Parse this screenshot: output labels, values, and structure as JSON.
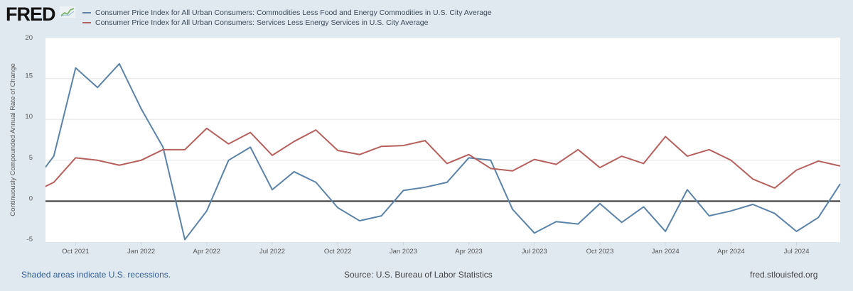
{
  "logo": "FRED",
  "footer": {
    "recessions": "Shaded areas indicate U.S. recessions.",
    "source": "Source: U.S. Bureau of Labor Statistics",
    "site": "fred.stlouisfed.org"
  },
  "colors": {
    "series1": "#5b83a8",
    "series2": "#b5605d",
    "background": "#e1e9f0",
    "plot": "#ffffff",
    "zero_line": "#333333"
  },
  "chart_data": {
    "type": "line",
    "title": "",
    "ylabel": "Continuously Compounded Annual Rate of Change",
    "xlabel": "",
    "ylim": [
      -5,
      20
    ],
    "yticks": [
      "20",
      "15",
      "10",
      "5",
      "0",
      "-5"
    ],
    "ytick_values": [
      20,
      15,
      10,
      5,
      0,
      -5
    ],
    "grid": true,
    "legend_placement": "top",
    "xtick_labels": [
      "Oct 2021",
      "Jan 2022",
      "Apr 2022",
      "Jul 2022",
      "Oct 2022",
      "Jan 2023",
      "Apr 2023",
      "Jul 2023",
      "Oct 2023",
      "Jan 2024",
      "Apr 2024",
      "Jul 2024"
    ],
    "xtick_month_index": [
      2,
      5,
      8,
      11,
      14,
      17,
      20,
      23,
      26,
      29,
      32,
      35
    ],
    "x_start": "Aug 2021",
    "xlim_month_index": [
      0.62,
      37
    ],
    "x": [
      "Aug 2021",
      "Sep 2021",
      "Oct 2021",
      "Nov 2021",
      "Dec 2021",
      "Jan 2022",
      "Feb 2022",
      "Mar 2022",
      "Apr 2022",
      "May 2022",
      "Jun 2022",
      "Jul 2022",
      "Aug 2022",
      "Sep 2022",
      "Oct 2022",
      "Nov 2022",
      "Dec 2022",
      "Jan 2023",
      "Feb 2023",
      "Mar 2023",
      "Apr 2023",
      "May 2023",
      "Jun 2023",
      "Jul 2023",
      "Aug 2023",
      "Sep 2023",
      "Oct 2023",
      "Nov 2023",
      "Dec 2023",
      "Jan 2024",
      "Feb 2024",
      "Mar 2024",
      "Apr 2024",
      "May 2024",
      "Jun 2024",
      "Jul 2024",
      "Aug 2024",
      "Sep 2024"
    ],
    "series": [
      {
        "name": "Consumer Price Index for All Urban Consumers: Commodities Less Food and Energy Commodities in U.S. City Average",
        "values": [
          2.0,
          5.5,
          16.3,
          13.9,
          16.8,
          11.3,
          6.6,
          -4.7,
          -1.2,
          5.0,
          6.6,
          1.4,
          3.6,
          2.3,
          -0.8,
          -2.4,
          -1.8,
          1.3,
          1.7,
          2.3,
          5.3,
          5.0,
          -1.0,
          -3.9,
          -2.5,
          -2.8,
          -0.3,
          -2.6,
          -0.7,
          -3.7,
          1.4,
          -1.8,
          -1.2,
          -0.4,
          -1.5,
          -3.7,
          -2.0,
          2.1
        ]
      },
      {
        "name": "Consumer Price Index for All Urban Consumers: Services Less Energy Services in U.S. City Average",
        "values": [
          1.0,
          2.3,
          5.3,
          5.0,
          4.4,
          5.0,
          6.3,
          6.3,
          8.9,
          7.0,
          8.4,
          5.6,
          7.3,
          8.7,
          6.2,
          5.7,
          6.7,
          6.8,
          7.4,
          4.6,
          5.7,
          4.0,
          3.7,
          5.1,
          4.5,
          6.3,
          4.1,
          5.5,
          4.6,
          7.9,
          5.5,
          6.3,
          5.0,
          2.7,
          1.6,
          3.8,
          4.9,
          4.3
        ]
      }
    ]
  }
}
